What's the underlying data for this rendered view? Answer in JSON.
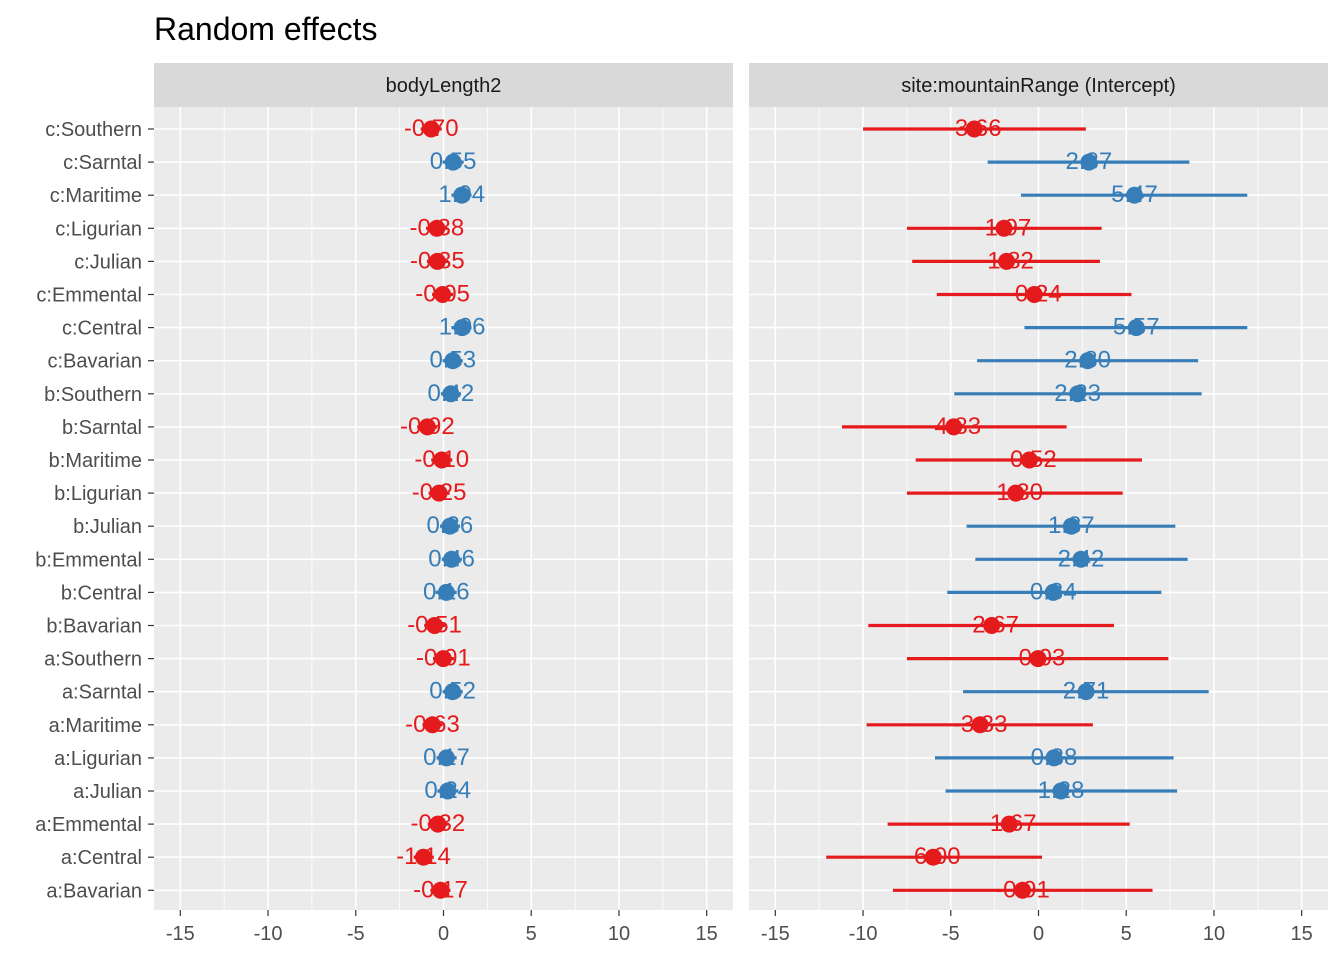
{
  "title": "Random effects",
  "colors": {
    "positive": "#377eb8",
    "negative": "#e41a1c",
    "panel_bg": "#ebebeb",
    "strip_bg": "#d9d9d9",
    "grid": "#ffffff"
  },
  "chart_data": {
    "type": "scatter",
    "title": "Random effects",
    "categories": [
      "c:Southern",
      "c:Sarntal",
      "c:Maritime",
      "c:Ligurian",
      "c:Julian",
      "c:Emmental",
      "c:Central",
      "c:Bavarian",
      "b:Southern",
      "b:Sarntal",
      "b:Maritime",
      "b:Ligurian",
      "b:Julian",
      "b:Emmental",
      "b:Central",
      "b:Bavarian",
      "a:Southern",
      "a:Sarntal",
      "a:Maritime",
      "a:Ligurian",
      "a:Julian",
      "a:Emmental",
      "a:Central",
      "a:Bavarian"
    ],
    "xlim": [
      -16.5,
      16.5
    ],
    "xticks": [
      -15,
      -10,
      -5,
      0,
      5,
      10,
      15
    ],
    "grid": true,
    "legend": "none",
    "panels": [
      {
        "name": "bodyLength2",
        "values": [
          -0.7,
          0.55,
          1.04,
          -0.38,
          -0.35,
          -0.05,
          1.06,
          0.53,
          0.42,
          -0.92,
          -0.1,
          -0.25,
          0.36,
          0.46,
          0.16,
          -0.51,
          -0.01,
          0.52,
          -0.63,
          0.17,
          0.24,
          -0.32,
          -1.14,
          -0.17
        ],
        "labels": [
          "-0.70",
          "0.55",
          "1.04",
          "-0.38",
          "-0.35",
          "-0.05",
          "1.06",
          "0.53",
          "0.42",
          "-0.92",
          "-0.10",
          "-0.25",
          "0.36",
          "0.46",
          "0.16",
          "-0.51",
          "-0.01",
          "0.52",
          "-0.63",
          "0.17",
          "0.24",
          "-0.32",
          "-1.14",
          "-0.17"
        ],
        "lower": [
          -1.3,
          -0.05,
          0.45,
          -1.0,
          -0.95,
          -0.65,
          0.45,
          -0.05,
          -0.15,
          -1.5,
          -0.7,
          -0.85,
          -0.2,
          -0.1,
          -0.45,
          -1.1,
          -0.6,
          -0.05,
          -1.2,
          -0.4,
          -0.35,
          -0.9,
          -1.7,
          -0.75
        ],
        "upper": [
          -0.1,
          1.15,
          1.6,
          0.2,
          0.25,
          0.55,
          1.6,
          1.1,
          1.0,
          -0.35,
          0.5,
          0.35,
          0.95,
          1.05,
          0.75,
          0.1,
          0.6,
          1.1,
          -0.05,
          0.75,
          0.85,
          0.25,
          -0.55,
          0.4
        ]
      },
      {
        "name": "site:mountainRange (Intercept)",
        "values": [
          -3.66,
          2.87,
          5.47,
          -1.97,
          -1.82,
          -0.24,
          5.57,
          2.8,
          2.23,
          -4.83,
          -0.52,
          -1.3,
          1.87,
          2.42,
          0.84,
          -2.67,
          -0.03,
          2.71,
          -3.33,
          0.88,
          1.28,
          -1.67,
          -6.0,
          -0.91
        ],
        "labels": [
          "-3.66",
          "2.87",
          "5.47",
          "-1.97",
          "-1.82",
          "-0.24",
          "5.57",
          "2.80",
          "2.23",
          "-4.83",
          "-0.52",
          "-1.30",
          "1.87",
          "2.42",
          "0.84",
          "-2.67",
          "-0.03",
          "2.71",
          "-3.33",
          "0.88",
          "1.28",
          "-1.67",
          "-6.00",
          "-0.91"
        ],
        "lower": [
          -10.0,
          -2.9,
          -1.0,
          -7.5,
          -7.2,
          -5.8,
          -0.8,
          -3.5,
          -4.8,
          -11.2,
          -7.0,
          -7.5,
          -4.1,
          -3.6,
          -5.2,
          -9.7,
          -7.5,
          -4.3,
          -9.8,
          -5.9,
          -5.3,
          -8.6,
          -12.1,
          -8.3
        ],
        "upper": [
          2.7,
          8.6,
          11.9,
          3.6,
          3.5,
          5.3,
          11.9,
          9.1,
          9.3,
          1.6,
          5.9,
          4.8,
          7.8,
          8.5,
          7.0,
          4.3,
          7.4,
          9.7,
          3.1,
          7.7,
          7.9,
          5.2,
          0.2,
          6.5
        ]
      }
    ]
  }
}
